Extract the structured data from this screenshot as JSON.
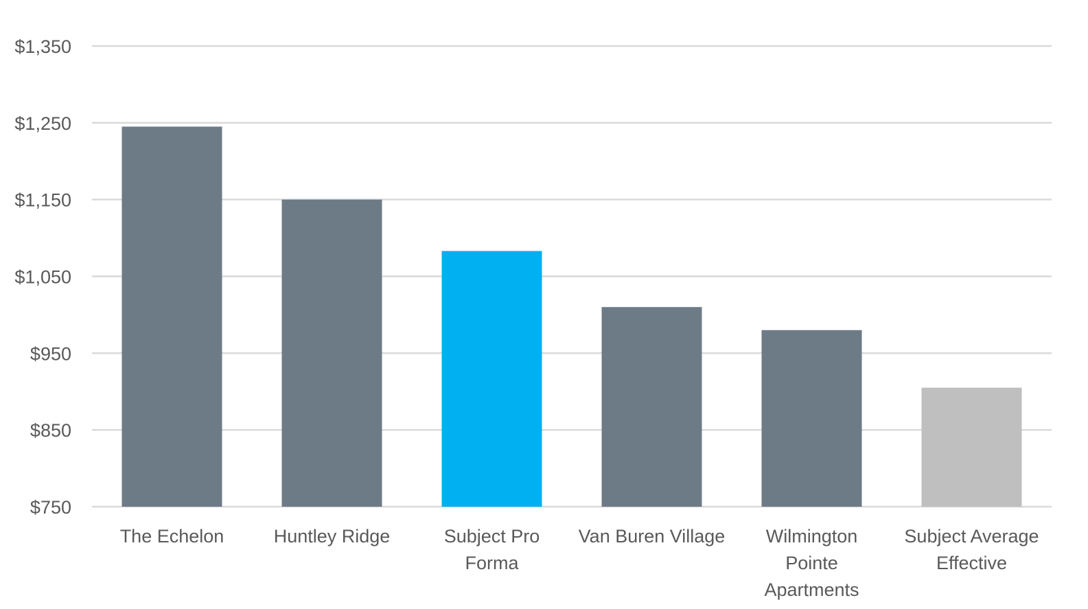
{
  "chart_data": {
    "type": "bar",
    "title": "",
    "xlabel": "",
    "ylabel": "",
    "ylim": [
      750,
      1350
    ],
    "yticks": [
      750,
      850,
      950,
      1050,
      1150,
      1250,
      1350
    ],
    "ytick_labels": [
      "$750",
      "$850",
      "$950",
      "$1,050",
      "$1,150",
      "$1,250",
      "$1,350"
    ],
    "grid": true,
    "legend": "none",
    "categories": [
      [
        "The Echelon"
      ],
      [
        "Huntley Ridge"
      ],
      [
        "Subject Pro",
        "Forma"
      ],
      [
        "Van Buren Village"
      ],
      [
        "Wilmington",
        "Pointe",
        "Apartments"
      ],
      [
        "Subject Average",
        "Effective"
      ]
    ],
    "values": [
      1245,
      1150,
      1083,
      1010,
      980,
      905
    ],
    "colors": [
      "#6d7b87",
      "#6d7b87",
      "#00b0f0",
      "#6d7b87",
      "#6d7b87",
      "#bfbfbf"
    ]
  }
}
